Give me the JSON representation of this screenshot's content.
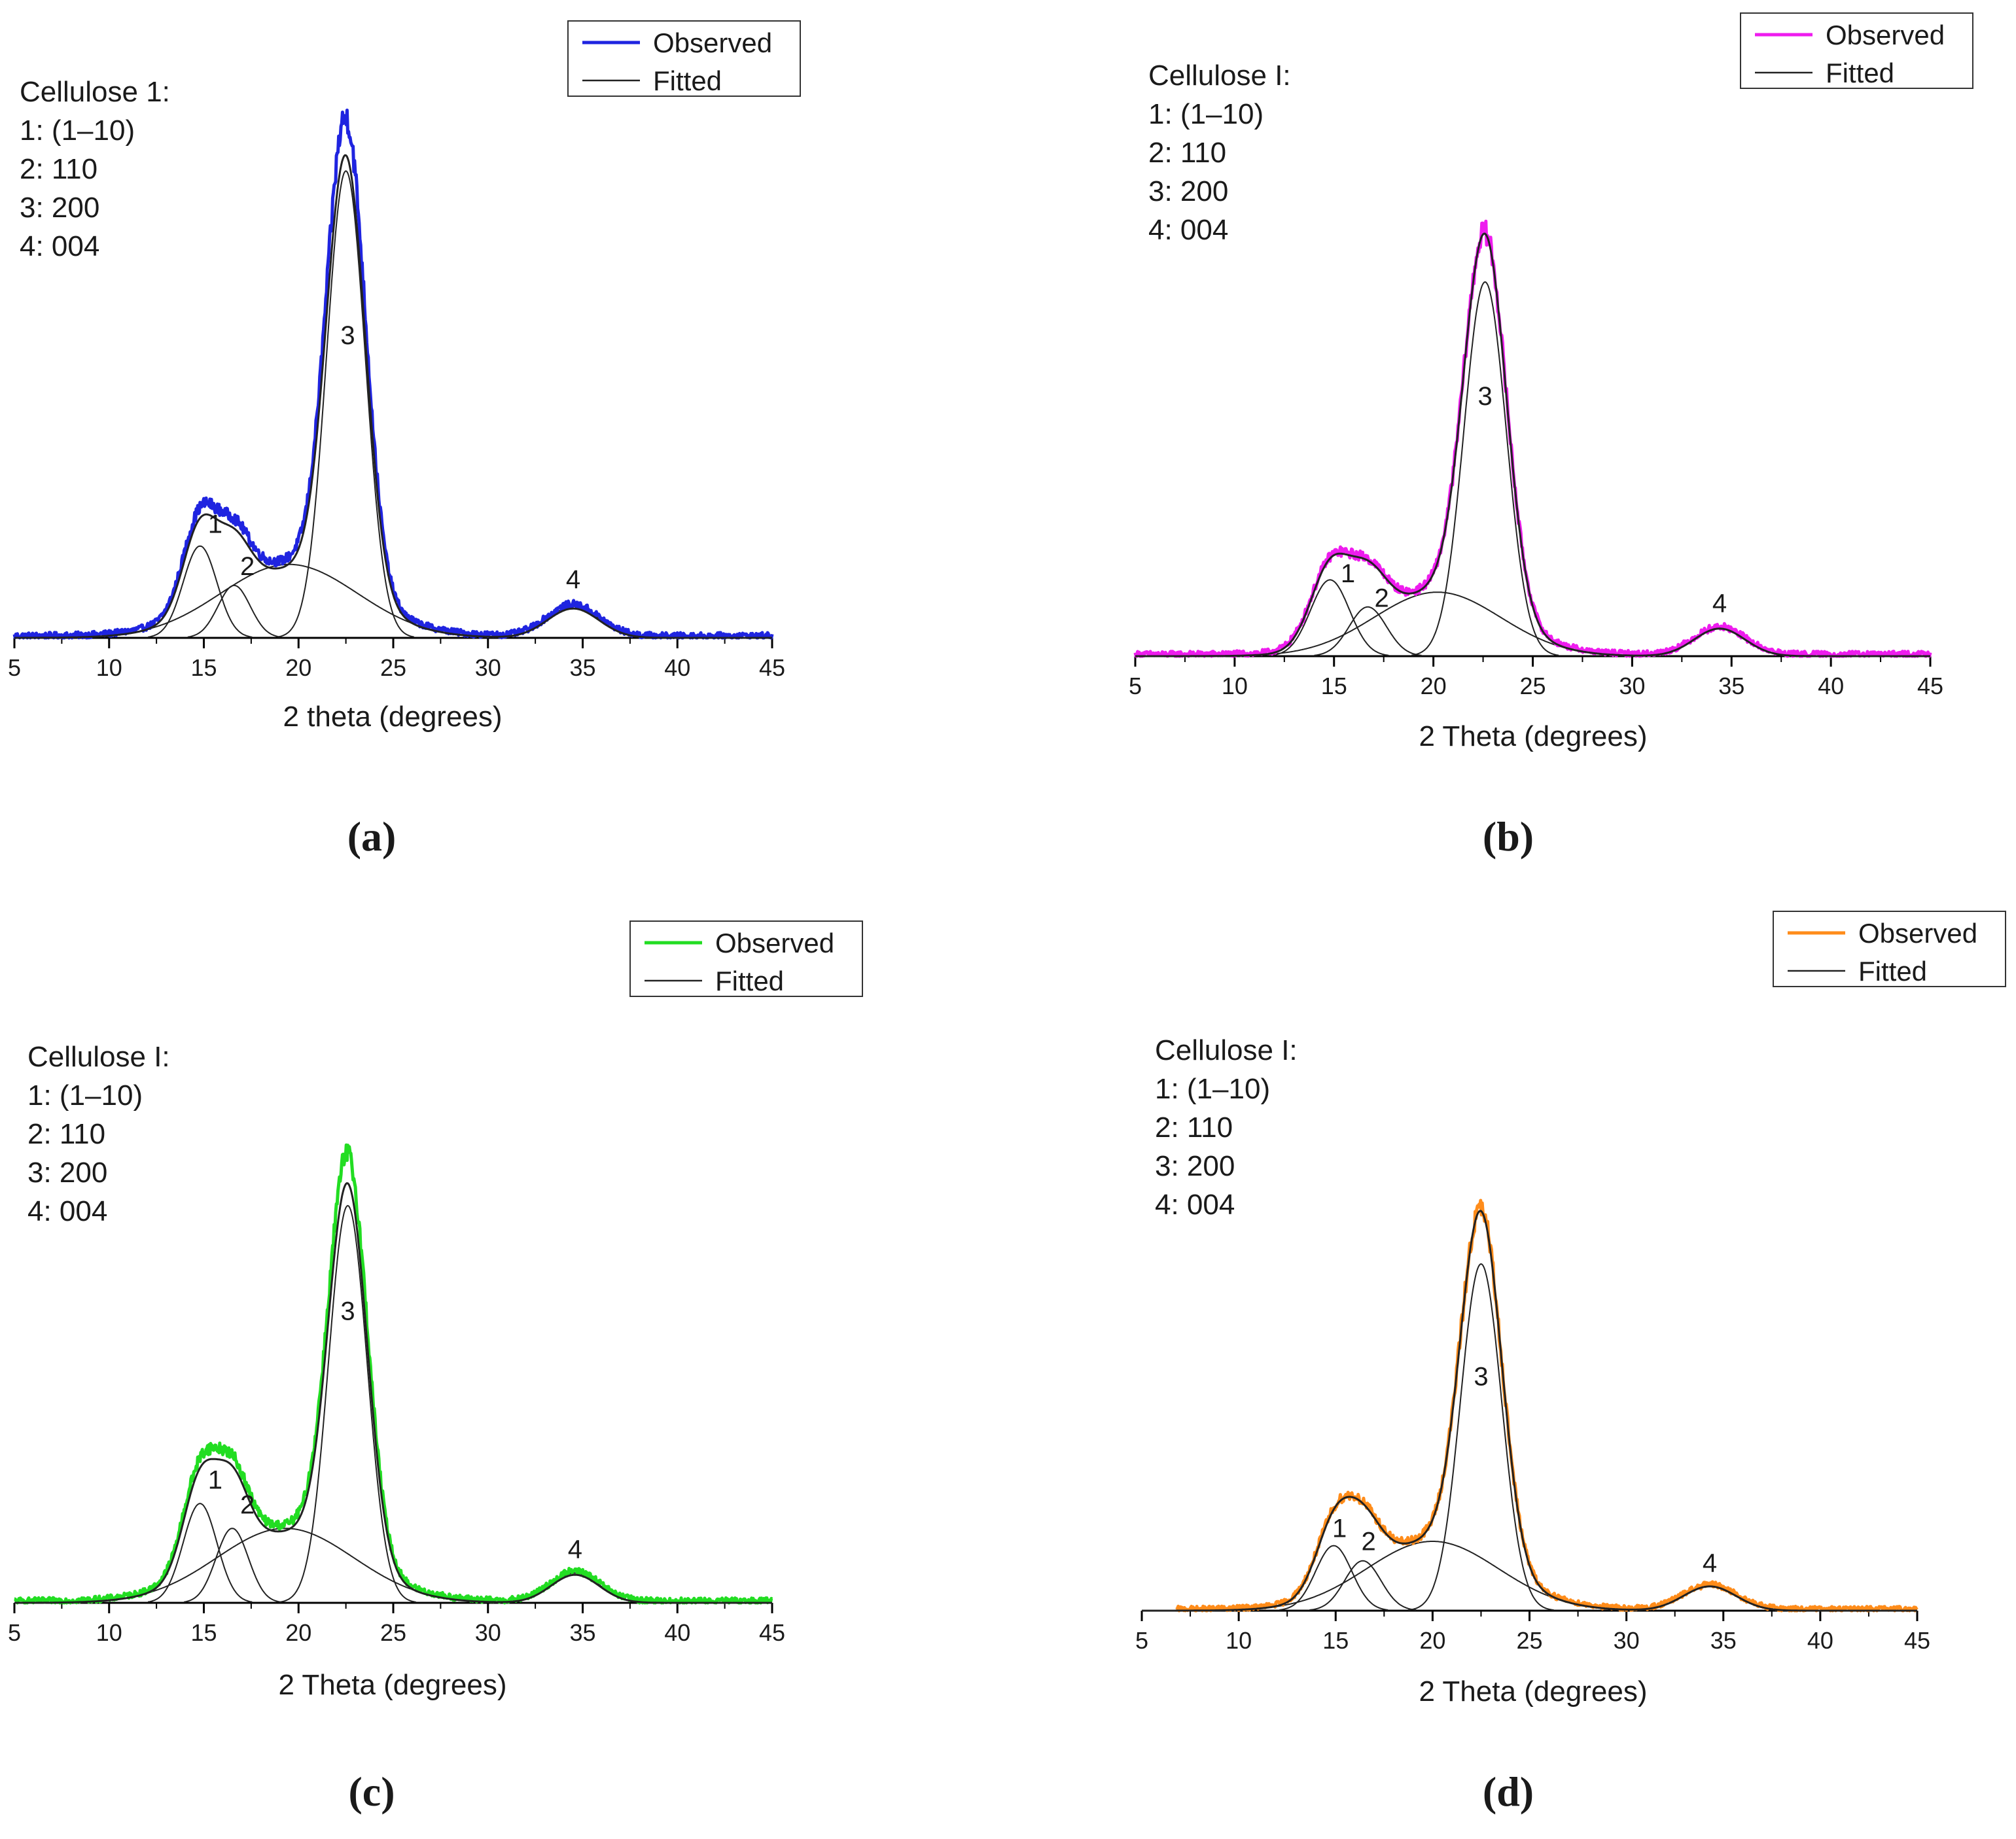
{
  "figure": {
    "panels": [
      {
        "letter": "a",
        "letter_display": "(a)",
        "annotation": [
          "Cellulose 1:",
          "1: (1–10)",
          "2: 110",
          "3: 200",
          "4: 004"
        ]
      },
      {
        "letter": "b",
        "letter_display": "(b)",
        "annotation": [
          "Cellulose I:",
          "1: (1–10)",
          "2: 110",
          "3: 200",
          "4: 004"
        ]
      },
      {
        "letter": "c",
        "letter_display": "(c)",
        "annotation": [
          "Cellulose I:",
          "1: (1–10)",
          "2: 110",
          "3: 200",
          "4: 004"
        ]
      },
      {
        "letter": "d",
        "letter_display": "(d)",
        "annotation": [
          "Cellulose I:",
          "1: (1–10)",
          "2: 110",
          "3: 200",
          "4: 004"
        ]
      }
    ]
  },
  "chart_data": [
    {
      "type": "line",
      "panel": "a",
      "title": "",
      "xlabel": "2 theta (degrees)",
      "ylabel": "",
      "xlim": [
        5,
        45
      ],
      "ylim": [
        0,
        1.06
      ],
      "xticks": [
        5,
        10,
        15,
        20,
        25,
        30,
        35,
        40,
        45
      ],
      "yticks_shown": false,
      "legend": {
        "position": "top-right",
        "entries": [
          {
            "label": "Observed",
            "color": "#1f24e0"
          },
          {
            "label": "Fitted",
            "color": "#222222"
          }
        ]
      },
      "observed_color": "#1f24e0",
      "observed_range": [
        5,
        45
      ],
      "peaks": [
        {
          "label": "1",
          "center": 14.8,
          "height": 0.175,
          "fwhm": 2.1
        },
        {
          "label": "2",
          "center": 16.6,
          "height": 0.1,
          "fwhm": 2.0
        },
        {
          "label": "am",
          "center": 19.5,
          "height": 0.14,
          "fwhm": 8.5
        },
        {
          "label": "3",
          "center": 22.5,
          "height": 0.89,
          "fwhm": 2.4
        },
        {
          "label": "4",
          "center": 34.5,
          "height": 0.06,
          "fwhm": 3.2
        }
      ],
      "fitted_sum_scale": 0.93,
      "peak_labels": [
        {
          "text": "1",
          "x": 15.6,
          "y": 0.2
        },
        {
          "text": "2",
          "x": 17.3,
          "y": 0.12
        },
        {
          "text": "3",
          "x": 22.6,
          "y": 0.56
        },
        {
          "text": "4",
          "x": 34.5,
          "y": 0.095
        }
      ]
    },
    {
      "type": "line",
      "panel": "b",
      "title": "",
      "xlabel": "2 Theta (degrees)",
      "ylabel": "",
      "xlim": [
        5,
        45
      ],
      "ylim": [
        0,
        1.12
      ],
      "xticks": [
        5,
        10,
        15,
        20,
        25,
        30,
        35,
        40,
        45
      ],
      "yticks_shown": false,
      "legend": {
        "position": "top-right",
        "entries": [
          {
            "label": "Observed",
            "color": "#ee1cee"
          },
          {
            "label": "Fitted",
            "color": "#222222"
          }
        ]
      },
      "observed_color": "#ee1cee",
      "observed_range": [
        5,
        45
      ],
      "peaks": [
        {
          "label": "1",
          "center": 14.8,
          "height": 0.155,
          "fwhm": 2.3
        },
        {
          "label": "2",
          "center": 16.7,
          "height": 0.1,
          "fwhm": 2.2
        },
        {
          "label": "am",
          "center": 20.2,
          "height": 0.13,
          "fwhm": 7.5
        },
        {
          "label": "3",
          "center": 22.6,
          "height": 0.76,
          "fwhm": 2.5
        },
        {
          "label": "4",
          "center": 34.4,
          "height": 0.056,
          "fwhm": 3.0
        }
      ],
      "fitted_sum_scale": 1.0,
      "peak_labels": [
        {
          "text": "1",
          "x": 15.7,
          "y": 0.15
        },
        {
          "text": "2",
          "x": 17.4,
          "y": 0.1
        },
        {
          "text": "3",
          "x": 22.6,
          "y": 0.51
        },
        {
          "text": "4",
          "x": 34.4,
          "y": 0.09
        }
      ]
    },
    {
      "type": "line",
      "panel": "c",
      "title": "",
      "xlabel": "2 Theta (degrees)",
      "ylabel": "",
      "xlim": [
        5,
        45
      ],
      "ylim": [
        0,
        1.12
      ],
      "xticks": [
        5,
        10,
        15,
        20,
        25,
        30,
        35,
        40,
        45
      ],
      "yticks_shown": false,
      "legend": {
        "position": "top-right",
        "entries": [
          {
            "label": "Observed",
            "color": "#22dd22"
          },
          {
            "label": "Fitted",
            "color": "#222222"
          }
        ]
      },
      "observed_color": "#22dd22",
      "observed_range": [
        5,
        45
      ],
      "peaks": [
        {
          "label": "1",
          "center": 14.8,
          "height": 0.2,
          "fwhm": 2.1
        },
        {
          "label": "2",
          "center": 16.5,
          "height": 0.15,
          "fwhm": 2.0
        },
        {
          "label": "am",
          "center": 19.3,
          "height": 0.15,
          "fwhm": 8.5
        },
        {
          "label": "3",
          "center": 22.6,
          "height": 0.8,
          "fwhm": 2.4
        },
        {
          "label": "4",
          "center": 34.6,
          "height": 0.06,
          "fwhm": 3.0
        }
      ],
      "fitted_sum_scale": 0.94,
      "peak_labels": [
        {
          "text": "1",
          "x": 15.6,
          "y": 0.23
        },
        {
          "text": "2",
          "x": 17.3,
          "y": 0.18
        },
        {
          "text": "3",
          "x": 22.6,
          "y": 0.57
        },
        {
          "text": "4",
          "x": 34.6,
          "y": 0.09
        }
      ]
    },
    {
      "type": "line",
      "panel": "d",
      "title": "",
      "xlabel": "2 Theta (degrees)",
      "ylabel": "",
      "xlim": [
        5,
        45
      ],
      "ylim": [
        0,
        1.12
      ],
      "xticks": [
        5,
        10,
        15,
        20,
        25,
        30,
        35,
        40,
        45
      ],
      "yticks_shown": false,
      "legend": {
        "position": "top-right",
        "entries": [
          {
            "label": "Observed",
            "color": "#ff8c1a"
          },
          {
            "label": "Fitted",
            "color": "#222222"
          }
        ]
      },
      "observed_color": "#ff8c1a",
      "observed_range": [
        6.8,
        45
      ],
      "peaks": [
        {
          "label": "1",
          "center": 14.9,
          "height": 0.15,
          "fwhm": 2.2
        },
        {
          "label": "2",
          "center": 16.4,
          "height": 0.115,
          "fwhm": 2.2
        },
        {
          "label": "am",
          "center": 20.0,
          "height": 0.16,
          "fwhm": 8.0
        },
        {
          "label": "3",
          "center": 22.5,
          "height": 0.8,
          "fwhm": 2.5
        },
        {
          "label": "4",
          "center": 34.3,
          "height": 0.056,
          "fwhm": 3.2
        }
      ],
      "fitted_sum_scale": 1.0,
      "peak_labels": [
        {
          "text": "1",
          "x": 15.2,
          "y": 0.17
        },
        {
          "text": "2",
          "x": 16.7,
          "y": 0.14
        },
        {
          "text": "3",
          "x": 22.5,
          "y": 0.52
        },
        {
          "text": "4",
          "x": 34.3,
          "y": 0.09
        }
      ]
    }
  ]
}
